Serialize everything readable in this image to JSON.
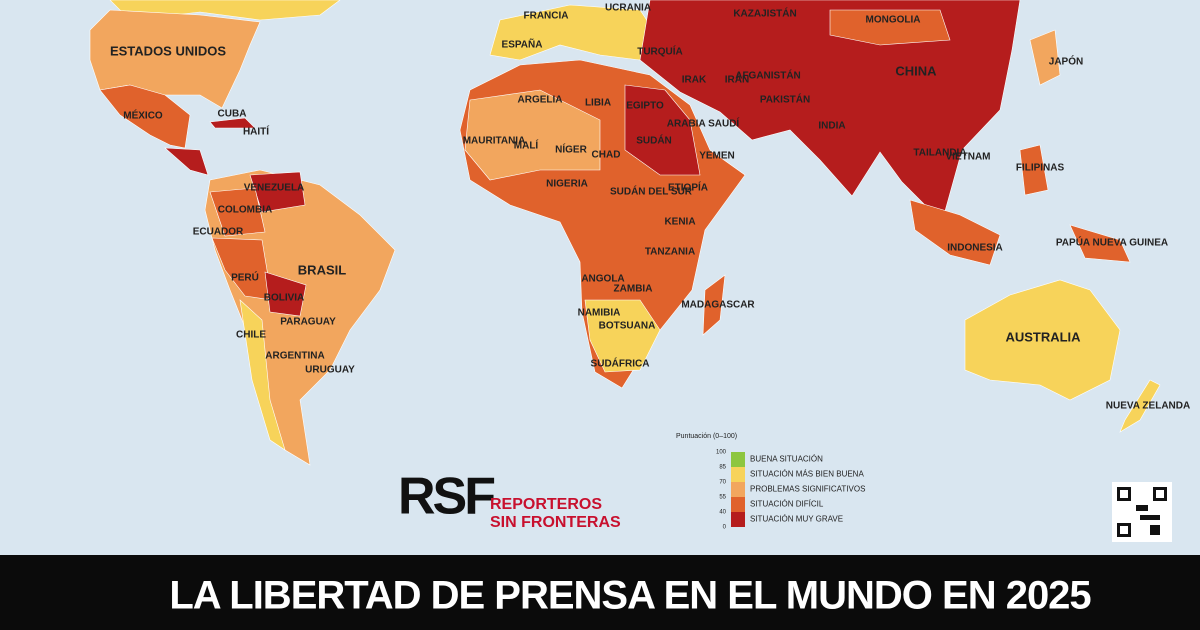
{
  "map": {
    "labels": [
      "ESTADOS UNIDOS",
      "MÉXICO",
      "CUBA",
      "HAITÍ",
      "VENEZUELA",
      "COLOMBIA",
      "ECUADOR",
      "PERÚ",
      "BOLIVIA",
      "BRASIL",
      "PARAGUAY",
      "CHILE",
      "ARGENTINA",
      "URUGUAY",
      "ARGELIA",
      "LIBIA",
      "EGIPTO",
      "MAURITANIA",
      "MALÍ",
      "NÍGER",
      "CHAD",
      "SUDÁN",
      "NIGERIA",
      "ETIOPÍA",
      "SUDÁN DEL SUR",
      "KENIA",
      "TANZANIA",
      "ANGOLA",
      "ZAMBIA",
      "NAMIBIA",
      "BOTSUANA",
      "SUDÁFRICA",
      "MADAGASCAR",
      "ARABIA SAUDÍ",
      "YEMEN",
      "IRÁN",
      "IRAK",
      "TURQUÍA",
      "KAZAJISTÁN",
      "MONGOLIA",
      "CHINA",
      "INDIA",
      "PAKISTÁN",
      "AFGANISTÁN",
      "JAPÓN",
      "FILIPINAS",
      "INDONESIA",
      "AUSTRALIA",
      "NUEVA ZELANDA",
      "PAPÚA NUEVA GUINEA",
      "ESPAÑA",
      "FRANCIA",
      "UCRANIA",
      "VIETNAM",
      "TAILANDIA"
    ]
  },
  "legend": {
    "title": "Puntuación (0–100)",
    "ticks": [
      100,
      85,
      70,
      55,
      40,
      0
    ],
    "items": [
      {
        "label": "BUENA SITUACIÓN",
        "color": "#8dc63f"
      },
      {
        "label": "SITUACIÓN MÁS BIEN BUENA",
        "color": "#f7d35a"
      },
      {
        "label": "PROBLEMAS SIGNIFICATIVOS",
        "color": "#f2a65e"
      },
      {
        "label": "SITUACIÓN DIFÍCIL",
        "color": "#e0622c"
      },
      {
        "label": "SITUACIÓN MUY GRAVE",
        "color": "#b51d1d"
      }
    ]
  },
  "logo": {
    "mark": "RSF",
    "line1": "REPORTEROS",
    "line2": "SIN FRONTERAS"
  },
  "footer": {
    "title": "LA LIBERTAD DE PRENSA EN EL MUNDO EN 2025"
  }
}
